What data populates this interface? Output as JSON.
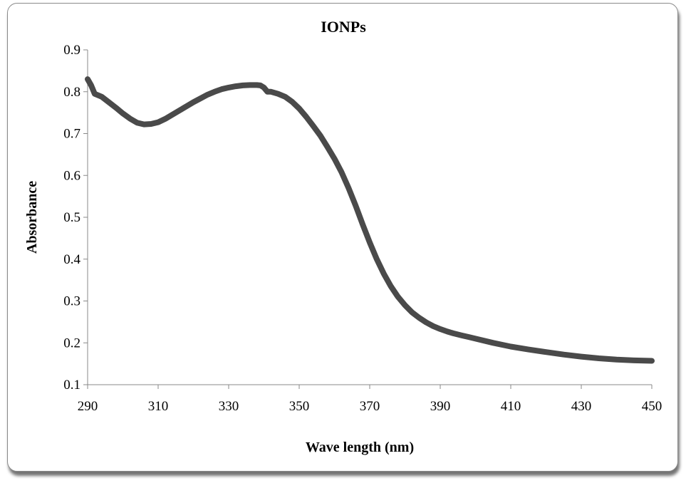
{
  "chart_data": {
    "type": "line",
    "title": "IONPs",
    "xlabel": "Wave length (nm)",
    "ylabel": "Absorbance",
    "xlim": [
      290,
      450
    ],
    "ylim": [
      0.1,
      0.9
    ],
    "xticks": [
      290,
      310,
      330,
      350,
      370,
      390,
      410,
      430,
      450
    ],
    "yticks": [
      0.1,
      0.2,
      0.3,
      0.4,
      0.5,
      0.6,
      0.7,
      0.8,
      0.9
    ],
    "grid": false,
    "legend": "none",
    "series": [
      {
        "color": "#4a4a4a",
        "x": [
          290,
          291,
          292,
          294,
          296,
          298,
          300,
          302,
          304,
          306,
          308,
          310,
          312,
          314,
          316,
          318,
          320,
          322,
          324,
          326,
          328,
          330,
          332,
          334,
          336,
          338,
          339,
          340,
          341,
          342,
          344,
          346,
          348,
          350,
          352,
          354,
          356,
          358,
          360,
          362,
          364,
          366,
          368,
          370,
          372,
          374,
          376,
          378,
          380,
          382,
          384,
          386,
          388,
          390,
          392,
          394,
          396,
          398,
          400,
          405,
          410,
          415,
          420,
          425,
          430,
          435,
          440,
          445,
          450
        ],
        "y": [
          0.83,
          0.815,
          0.795,
          0.788,
          0.775,
          0.762,
          0.748,
          0.736,
          0.726,
          0.722,
          0.723,
          0.727,
          0.735,
          0.745,
          0.755,
          0.765,
          0.775,
          0.784,
          0.793,
          0.8,
          0.806,
          0.81,
          0.813,
          0.815,
          0.816,
          0.816,
          0.815,
          0.81,
          0.8,
          0.8,
          0.795,
          0.788,
          0.776,
          0.76,
          0.74,
          0.718,
          0.695,
          0.668,
          0.64,
          0.608,
          0.57,
          0.528,
          0.483,
          0.44,
          0.4,
          0.365,
          0.335,
          0.31,
          0.29,
          0.273,
          0.26,
          0.249,
          0.24,
          0.233,
          0.227,
          0.222,
          0.218,
          0.214,
          0.21,
          0.2,
          0.191,
          0.184,
          0.178,
          0.172,
          0.167,
          0.163,
          0.16,
          0.158,
          0.157
        ]
      }
    ]
  }
}
